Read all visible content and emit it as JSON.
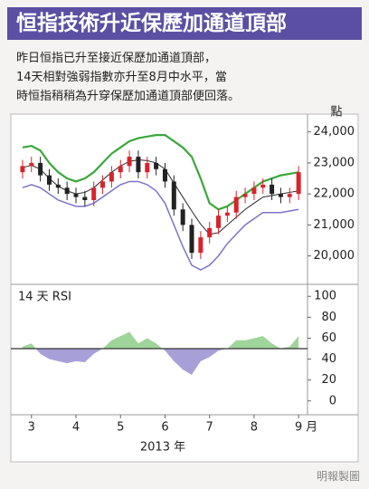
{
  "header": {
    "title": "恒指技術升近保歷加通道頂部"
  },
  "text": {
    "lines": [
      "昨日恒指已升至接近保歷加通道頂部，",
      "14天相對強弱指數亦升至8月中水平，當",
      "時恒指稍稍為升穿保歷加通道頂部便回落。"
    ]
  },
  "chart_data": [
    {
      "type": "candlestick",
      "y_unit": "點",
      "x": [
        2.8,
        3.0,
        3.2,
        3.4,
        3.6,
        3.8,
        4.0,
        4.2,
        4.4,
        4.6,
        4.8,
        5.0,
        5.2,
        5.4,
        5.6,
        5.8,
        6.0,
        6.2,
        6.4,
        6.6,
        6.8,
        7.0,
        7.2,
        7.4,
        7.6,
        7.8,
        8.0,
        8.2,
        8.4,
        8.6,
        8.8,
        9.0
      ],
      "open": [
        22700,
        22900,
        23000,
        22600,
        22300,
        22200,
        22000,
        21900,
        21800,
        22200,
        22400,
        22700,
        22900,
        23200,
        22700,
        23000,
        22800,
        22400,
        21500,
        21000,
        20100,
        20600,
        20900,
        21300,
        21400,
        21900,
        22000,
        22200,
        22300,
        22000,
        21900,
        22000
      ],
      "high": [
        23100,
        23200,
        23200,
        22800,
        22500,
        22400,
        22200,
        22100,
        22400,
        22600,
        22900,
        23100,
        23400,
        23400,
        23200,
        23200,
        23000,
        22600,
        21700,
        21200,
        20800,
        21100,
        21500,
        21600,
        22100,
        22200,
        22400,
        22500,
        22500,
        22200,
        22200,
        22900
      ],
      "low": [
        22500,
        22700,
        22400,
        22100,
        22000,
        21800,
        21700,
        21600,
        21600,
        22000,
        22200,
        22500,
        22700,
        22500,
        22500,
        22600,
        22200,
        21300,
        20800,
        19900,
        19900,
        20400,
        20700,
        21100,
        21200,
        21700,
        21800,
        22000,
        21800,
        21700,
        21700,
        21800
      ],
      "close": [
        22900,
        23000,
        22600,
        22300,
        22200,
        22000,
        21900,
        21800,
        22200,
        22400,
        22700,
        22900,
        23200,
        22700,
        23000,
        22800,
        22400,
        21500,
        21000,
        20100,
        20600,
        20900,
        21300,
        21400,
        21900,
        22000,
        22200,
        22300,
        22000,
        21900,
        22000,
        22700
      ],
      "up_color": "#d9232a",
      "down_color": "#222222",
      "bands": {
        "upper": {
          "color": "#3aa83a",
          "values": [
            23500,
            23550,
            23400,
            23000,
            22700,
            22500,
            22400,
            22500,
            22700,
            23000,
            23300,
            23500,
            23700,
            23800,
            23850,
            23900,
            23900,
            23700,
            23500,
            23200,
            22500,
            21700,
            21500,
            21600,
            21800,
            22000,
            22200,
            22400,
            22500,
            22600,
            22650,
            22700
          ]
        },
        "middle": {
          "color": "#2a2a2a",
          "values": [
            22850,
            22925,
            22800,
            22500,
            22250,
            22100,
            22000,
            22050,
            22200,
            22450,
            22700,
            22900,
            23050,
            23100,
            23075,
            23000,
            22800,
            22350,
            21900,
            21450,
            21025,
            20700,
            20750,
            21000,
            21250,
            21500,
            21700,
            21900,
            21950,
            22000,
            22050,
            22100
          ]
        },
        "lower": {
          "color": "#7a74c8",
          "values": [
            22200,
            22300,
            22200,
            22000,
            21800,
            21700,
            21600,
            21600,
            21700,
            21900,
            22100,
            22300,
            22400,
            22400,
            22300,
            22100,
            21700,
            21000,
            20300,
            19700,
            19550,
            19700,
            20000,
            20400,
            20700,
            21000,
            21200,
            21400,
            21400,
            21400,
            21450,
            21500
          ]
        }
      },
      "xlim": [
        2.7,
        9.2
      ],
      "ylim": [
        19200,
        24400
      ],
      "yticks": [
        {
          "value": 20000,
          "label": "20,000"
        },
        {
          "value": 21000,
          "label": "21,000"
        },
        {
          "value": 22000,
          "label": "22,000"
        },
        {
          "value": 23000,
          "label": "23,000"
        },
        {
          "value": 24000,
          "label": "24,000"
        }
      ]
    },
    {
      "type": "area",
      "label": "14 天 RSI",
      "x": [
        2.8,
        3.0,
        3.2,
        3.4,
        3.6,
        3.8,
        4.0,
        4.2,
        4.4,
        4.6,
        4.8,
        5.0,
        5.2,
        5.4,
        5.6,
        5.8,
        6.0,
        6.2,
        6.4,
        6.6,
        6.8,
        7.0,
        7.2,
        7.4,
        7.6,
        7.8,
        8.0,
        8.2,
        8.4,
        8.6,
        8.8,
        9.0
      ],
      "values": [
        52,
        55,
        45,
        40,
        38,
        36,
        38,
        37,
        45,
        50,
        58,
        62,
        66,
        55,
        60,
        55,
        48,
        38,
        30,
        25,
        38,
        42,
        48,
        50,
        58,
        58,
        60,
        62,
        55,
        50,
        52,
        62
      ],
      "reference": 50,
      "above_color": "#9fd49a",
      "below_color": "#a7a0d8",
      "xlim": [
        2.7,
        9.2
      ],
      "ylim": [
        -8,
        108
      ],
      "yticks": [
        0,
        20,
        40,
        60,
        80,
        100
      ],
      "xticks": [
        3,
        4,
        5,
        6,
        7,
        8,
        9
      ],
      "x_unit": "月",
      "xlabel": "2013 年"
    }
  ],
  "footer": {
    "credit": "明報製圖"
  }
}
